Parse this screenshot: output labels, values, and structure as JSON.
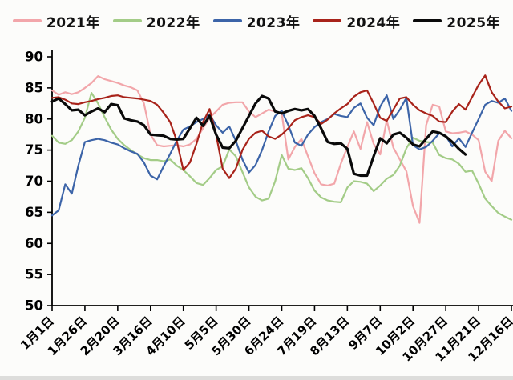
{
  "chart_data": {
    "type": "line",
    "title": "",
    "xlabel": "",
    "ylabel": "",
    "ylim": [
      50,
      90
    ],
    "y_tick_step": 5,
    "y_ticks": [
      90,
      85,
      80,
      75,
      70,
      65,
      60,
      55,
      50
    ],
    "grid": false,
    "legend_position": "top",
    "x_tick_labels": [
      "1月1日",
      "1月26日",
      "2月20日",
      "3月16日",
      "4月10日",
      "5月5日",
      "5月30日",
      "6月24日",
      "7月19日",
      "8月13日",
      "9月7日",
      "10月2日",
      "10月27日",
      "11月21日",
      "12月16日"
    ],
    "x_dates": [
      "1月1日",
      "1月6日",
      "1月11日",
      "1月16日",
      "1月21日",
      "1月26日",
      "1月31日",
      "2月5日",
      "2月10日",
      "2月15日",
      "2月20日",
      "2月25日",
      "3月2日",
      "3月7日",
      "3月12日",
      "3月16日",
      "3月21日",
      "3月26日",
      "3月31日",
      "4月5日",
      "4月10日",
      "4月15日",
      "4月20日",
      "4月25日",
      "4月30日",
      "5月5日",
      "5月10日",
      "5月15日",
      "5月20日",
      "5月25日",
      "5月30日",
      "6月4日",
      "6月9日",
      "6月14日",
      "6月19日",
      "6月24日",
      "6月29日",
      "7月4日",
      "7月9日",
      "7月14日",
      "7月19日",
      "7月24日",
      "7月29日",
      "8月3日",
      "8月8日",
      "8月13日",
      "8月18日",
      "8月23日",
      "8月28日",
      "9月2日",
      "9月7日",
      "9月12日",
      "9月17日",
      "9月22日",
      "9月27日",
      "10月2日",
      "10月7日",
      "10月12日",
      "10月17日",
      "10月22日",
      "10月27日",
      "11月1日",
      "11月6日",
      "11月11日",
      "11月16日",
      "11月21日",
      "11月26日",
      "12月1日",
      "12月6日",
      "12月11日",
      "12月16日"
    ],
    "series": [
      {
        "name": "2021年",
        "color": "#f2a6aa",
        "line_width": 2.2,
        "values": [
          84.6,
          83.9,
          84.3,
          84.0,
          84.3,
          85.0,
          85.8,
          86.9,
          86.4,
          86.1,
          85.8,
          85.4,
          85.1,
          84.6,
          82.5,
          77.5,
          75.8,
          75.6,
          75.7,
          75.8,
          75.6,
          75.9,
          76.8,
          78.5,
          80.2,
          81.2,
          82.3,
          82.6,
          82.7,
          82.7,
          81.2,
          80.3,
          80.9,
          81.5,
          81.2,
          80.9,
          73.5,
          75.5,
          76.8,
          74.0,
          71.3,
          69.5,
          69.3,
          69.6,
          72.8,
          75.5,
          78.0,
          75.2,
          79.5,
          76.0,
          74.3,
          79.8,
          75.4,
          73.5,
          71.6,
          66.0,
          63.3,
          79.0,
          82.3,
          82.0,
          78.0,
          77.7,
          77.8,
          78.0,
          77.5,
          76.6,
          71.5,
          70.0,
          76.5,
          78.1,
          76.9
        ]
      },
      {
        "name": "2022年",
        "color": "#a3cc87",
        "line_width": 2.2,
        "values": [
          77.3,
          76.2,
          76.0,
          76.6,
          78.0,
          80.2,
          84.2,
          82.5,
          80.3,
          78.3,
          76.8,
          75.8,
          75.0,
          74.3,
          73.7,
          73.4,
          73.4,
          73.2,
          73.5,
          72.5,
          71.8,
          70.8,
          69.7,
          69.4,
          70.5,
          71.8,
          72.4,
          75.1,
          74.0,
          71.5,
          69.0,
          67.5,
          66.9,
          67.2,
          70.0,
          74.2,
          72.0,
          71.8,
          72.1,
          70.5,
          68.5,
          67.4,
          66.9,
          66.7,
          66.6,
          69.0,
          70.0,
          69.9,
          69.6,
          68.4,
          69.3,
          70.4,
          71.0,
          72.5,
          75.3,
          77.0,
          76.5,
          76.3,
          76.2,
          74.2,
          73.7,
          73.5,
          72.8,
          71.5,
          71.7,
          69.6,
          67.2,
          66.0,
          64.9,
          64.3,
          63.8
        ]
      },
      {
        "name": "2023年",
        "color": "#3c64a8",
        "line_width": 2.2,
        "values": [
          64.5,
          65.3,
          69.5,
          68.0,
          72.5,
          76.3,
          76.6,
          76.8,
          76.6,
          76.2,
          75.9,
          75.3,
          74.8,
          74.4,
          73.0,
          70.9,
          70.3,
          72.4,
          74.4,
          76.5,
          78.3,
          78.8,
          79.5,
          80.0,
          80.7,
          79.0,
          77.8,
          78.8,
          76.5,
          73.5,
          71.4,
          72.6,
          75.0,
          78.0,
          80.5,
          81.3,
          79.0,
          76.2,
          75.7,
          77.5,
          78.7,
          79.5,
          80.0,
          80.8,
          80.5,
          80.3,
          81.8,
          82.5,
          80.2,
          79.0,
          82.0,
          83.8,
          80.0,
          81.5,
          83.4,
          75.8,
          75.1,
          75.5,
          76.5,
          77.7,
          77.3,
          75.6,
          76.9,
          75.5,
          77.8,
          80.0,
          82.3,
          82.9,
          82.6,
          83.3,
          81.3
        ]
      },
      {
        "name": "2024年",
        "color": "#a8231a",
        "line_width": 2.2,
        "values": [
          83.4,
          83.5,
          83.1,
          82.5,
          82.4,
          82.7,
          82.9,
          83.2,
          83.4,
          83.7,
          83.8,
          83.5,
          83.4,
          83.3,
          83.1,
          82.9,
          82.3,
          81.0,
          79.5,
          76.5,
          71.8,
          73.0,
          76.0,
          79.5,
          81.6,
          77.5,
          72.0,
          70.5,
          72.0,
          75.0,
          76.8,
          77.8,
          78.1,
          77.2,
          76.8,
          77.5,
          78.5,
          79.8,
          80.3,
          80.6,
          80.3,
          79.2,
          79.9,
          80.9,
          81.7,
          82.4,
          83.6,
          84.3,
          84.6,
          82.5,
          80.2,
          79.7,
          81.5,
          83.3,
          83.5,
          82.3,
          81.4,
          80.9,
          80.5,
          79.6,
          79.5,
          81.2,
          82.4,
          81.5,
          83.5,
          85.5,
          87.0,
          84.3,
          82.8,
          81.7,
          82.0
        ]
      },
      {
        "name": "2025年",
        "color": "#0a0a0a",
        "line_width": 3.2,
        "values": [
          82.8,
          83.3,
          82.4,
          81.4,
          81.5,
          80.6,
          81.2,
          81.7,
          81.1,
          82.4,
          82.2,
          80.1,
          79.8,
          79.6,
          79.0,
          77.5,
          77.4,
          77.3,
          76.8,
          76.7,
          76.8,
          78.5,
          80.2,
          78.9,
          80.5,
          77.5,
          75.4,
          75.3,
          76.5,
          78.5,
          80.5,
          82.5,
          83.7,
          83.3,
          81.2,
          80.9,
          81.3,
          81.6,
          81.4,
          81.6,
          80.5,
          78.5,
          76.3,
          76.0,
          76.1,
          75.2,
          71.2,
          70.9,
          70.9,
          74.0,
          76.9,
          76.1,
          77.5,
          77.8,
          77.0,
          75.9,
          75.6,
          76.8,
          78.0,
          77.8,
          77.2,
          76.3,
          75.2,
          74.3,
          null,
          null,
          null,
          null,
          null,
          null,
          null
        ]
      }
    ]
  },
  "legend": {
    "items": [
      {
        "label": "2021年",
        "color": "#f2a6aa"
      },
      {
        "label": "2022年",
        "color": "#a3cc87"
      },
      {
        "label": "2023年",
        "color": "#3c64a8"
      },
      {
        "label": "2024年",
        "color": "#a8231a"
      },
      {
        "label": "2025年",
        "color": "#0a0a0a"
      }
    ]
  },
  "axis_color": "#000000"
}
